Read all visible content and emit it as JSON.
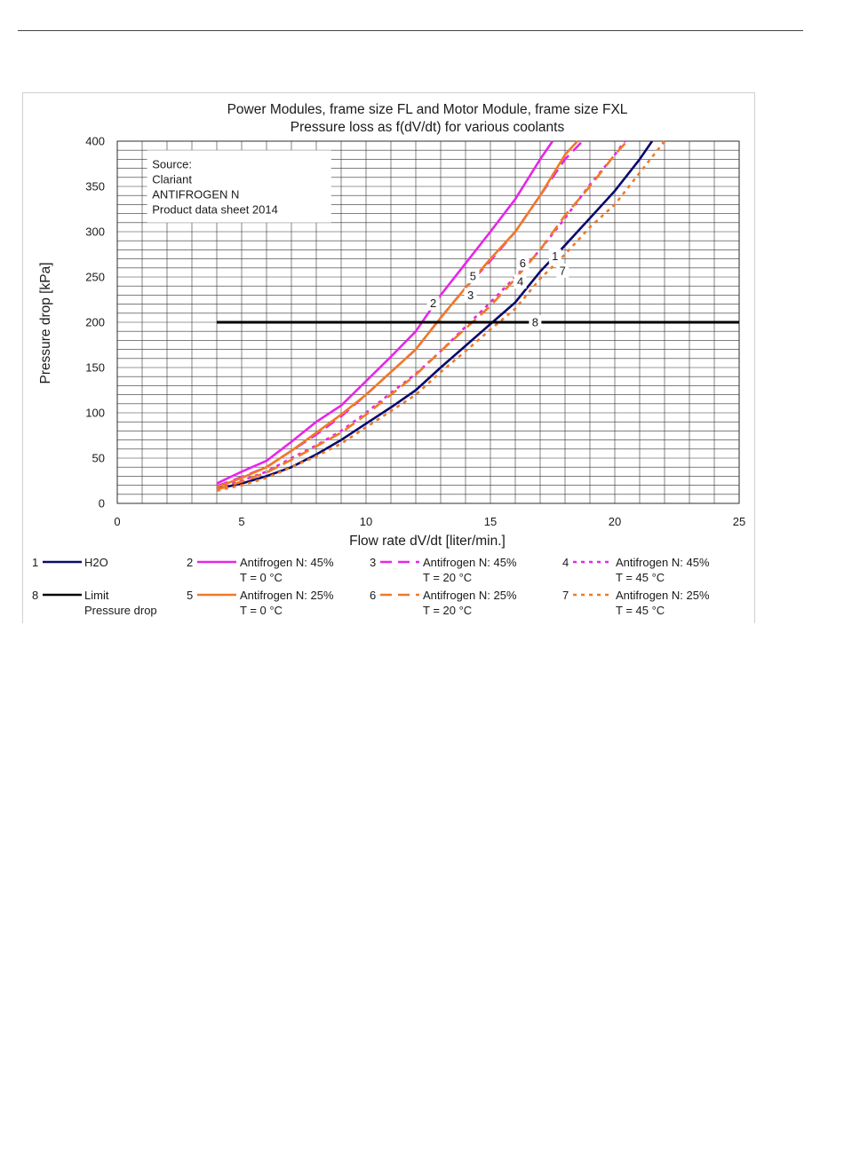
{
  "chart_data": {
    "type": "line",
    "title": "Power Modules, frame size FL and Motor Module, frame size FXL",
    "subtitle": "Pressure loss as f(dV/dt) for various coolants",
    "xlabel": "Flow rate dV/dt [liter/min.]",
    "ylabel": "Pressure drop [kPa]",
    "xlim": [
      0,
      25
    ],
    "ylim": [
      0,
      400
    ],
    "xticks": [
      "0",
      "5",
      "10",
      "15",
      "20",
      "25"
    ],
    "yticks": [
      "0",
      "50",
      "100",
      "150",
      "200",
      "250",
      "300",
      "350",
      "400"
    ],
    "grid": true,
    "source_note": [
      "Source:",
      "Clariant",
      "ANTIFROGEN N",
      "Product data sheet 2014"
    ],
    "series": [
      {
        "id": "1",
        "name": "H2O",
        "color": "#0a0a6e",
        "dash": "solid",
        "x": [
          4,
          5,
          6,
          7,
          8,
          9,
          10,
          11,
          12,
          13,
          14,
          15,
          16,
          17,
          18,
          19,
          20,
          21,
          21.5
        ],
        "y": [
          16,
          22,
          30,
          40,
          54,
          70,
          88,
          106,
          125,
          150,
          174,
          198,
          222,
          256,
          285,
          315,
          345,
          380,
          400
        ]
      },
      {
        "id": "2",
        "name": "Antifrogen N: 45%",
        "name2": "T = 0 °C",
        "color": "#e825e8",
        "dash": "solid",
        "x": [
          4,
          5,
          6,
          7,
          8,
          9,
          10,
          11,
          12,
          13,
          14,
          15,
          16,
          17,
          17.5
        ],
        "y": [
          22,
          35,
          47,
          68,
          90,
          108,
          135,
          162,
          190,
          230,
          265,
          300,
          336,
          380,
          400
        ]
      },
      {
        "id": "3",
        "name": "Antifrogen N: 45%",
        "name2": "T = 20 °C",
        "color": "#e825e8",
        "dash": "long",
        "x": [
          4,
          5,
          6,
          7,
          8,
          9,
          10,
          11,
          12,
          13,
          14,
          15,
          16,
          17,
          18,
          18.7
        ],
        "y": [
          19,
          29,
          40,
          58,
          76,
          96,
          120,
          145,
          170,
          205,
          238,
          268,
          300,
          340,
          380,
          400
        ]
      },
      {
        "id": "4",
        "name": "Antifrogen N: 45%",
        "name2": "T = 45 °C",
        "color": "#e825e8",
        "dash": "short",
        "x": [
          4,
          5,
          6,
          7,
          8,
          9,
          10,
          11,
          12,
          13,
          14,
          15,
          16,
          17,
          18,
          19,
          20,
          20.4
        ],
        "y": [
          17,
          25,
          35,
          50,
          64,
          80,
          100,
          122,
          143,
          168,
          195,
          222,
          250,
          280,
          315,
          352,
          385,
          400
        ]
      },
      {
        "id": "5",
        "name": "Antifrogen N: 25%",
        "name2": "T = 0 °C",
        "color": "#f07a25",
        "dash": "solid",
        "x": [
          4,
          5,
          6,
          7,
          8,
          9,
          10,
          11,
          12,
          13,
          14,
          15,
          16,
          17,
          18,
          18.5
        ],
        "y": [
          18,
          28,
          40,
          58,
          78,
          98,
          120,
          145,
          170,
          205,
          238,
          270,
          300,
          340,
          385,
          400
        ]
      },
      {
        "id": "6",
        "name": "Antifrogen N: 25%",
        "name2": "T = 20 °C",
        "color": "#f07a25",
        "dash": "long",
        "x": [
          4,
          5,
          6,
          7,
          8,
          9,
          10,
          11,
          12,
          13,
          14,
          15,
          16,
          17,
          18,
          19,
          20,
          20.5
        ],
        "y": [
          15,
          24,
          34,
          48,
          63,
          78,
          98,
          120,
          142,
          168,
          193,
          218,
          248,
          280,
          318,
          350,
          385,
          400
        ]
      },
      {
        "id": "7",
        "name": "Antifrogen N: 25%",
        "name2": "T = 45 °C",
        "color": "#f07a25",
        "dash": "short",
        "x": [
          4,
          5,
          6,
          7,
          8,
          9,
          10,
          11,
          12,
          13,
          14,
          15,
          16,
          17,
          18,
          19,
          20,
          21,
          22
        ],
        "y": [
          14,
          20,
          28,
          40,
          52,
          66,
          84,
          102,
          120,
          145,
          168,
          192,
          215,
          248,
          275,
          305,
          330,
          365,
          400
        ]
      },
      {
        "id": "8",
        "name": "Limit",
        "name2": "Pressure drop",
        "color": "#000000",
        "dash": "solid",
        "x": [
          4,
          25
        ],
        "y": [
          200,
          200
        ]
      }
    ],
    "curve_labels": [
      {
        "text": "1",
        "x": 17.6,
        "y": 273
      },
      {
        "text": "2",
        "x": 12.7,
        "y": 221
      },
      {
        "text": "3",
        "x": 14.2,
        "y": 230
      },
      {
        "text": "4",
        "x": 16.2,
        "y": 245
      },
      {
        "text": "5",
        "x": 14.3,
        "y": 251
      },
      {
        "text": "6",
        "x": 16.3,
        "y": 265
      },
      {
        "text": "7",
        "x": 17.9,
        "y": 257
      },
      {
        "text": "8",
        "x": 16.8,
        "y": 200
      }
    ]
  }
}
